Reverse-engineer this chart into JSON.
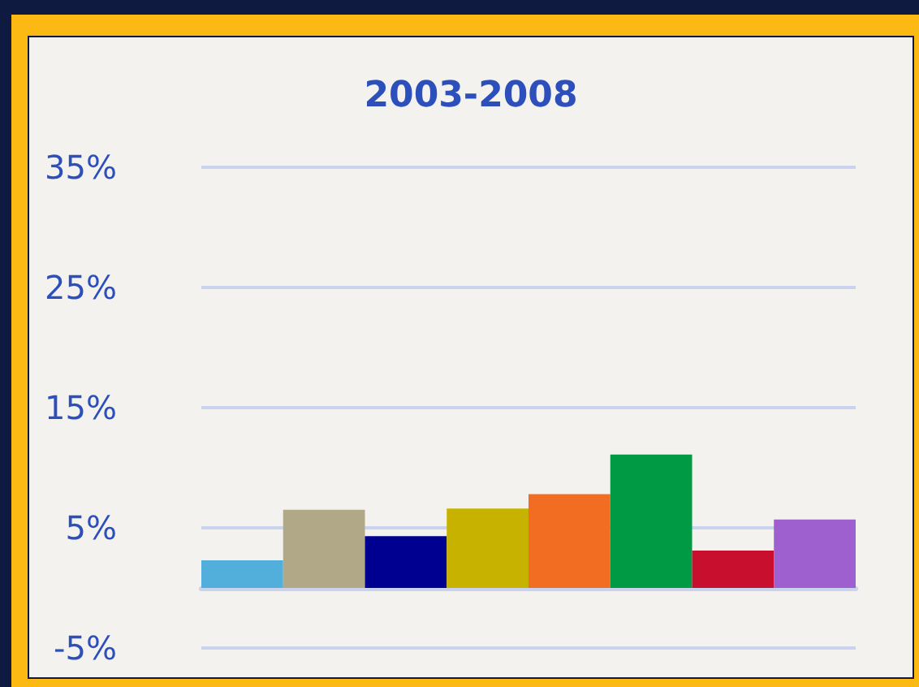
{
  "chart_data": {
    "type": "bar",
    "title": "2003-2008",
    "categories": [
      null,
      null,
      null,
      null,
      null,
      null,
      null,
      null
    ],
    "values": [
      2.3,
      6.5,
      4.3,
      6.6,
      7.8,
      11.1,
      3.1,
      5.7
    ],
    "colors": [
      "#52aedb",
      "#b0a886",
      "#000090",
      "#c8b200",
      "#f26c22",
      "#009a44",
      "#c8102e",
      "#9e5fcf"
    ],
    "ylim": [
      -5,
      35
    ],
    "yticks": [
      {
        "value": -5,
        "label": "-5%"
      },
      {
        "value": 5,
        "label": "5%"
      },
      {
        "value": 15,
        "label": "15%"
      },
      {
        "value": 25,
        "label": "25%"
      },
      {
        "value": 35,
        "label": "35%"
      }
    ],
    "grid": "y"
  }
}
